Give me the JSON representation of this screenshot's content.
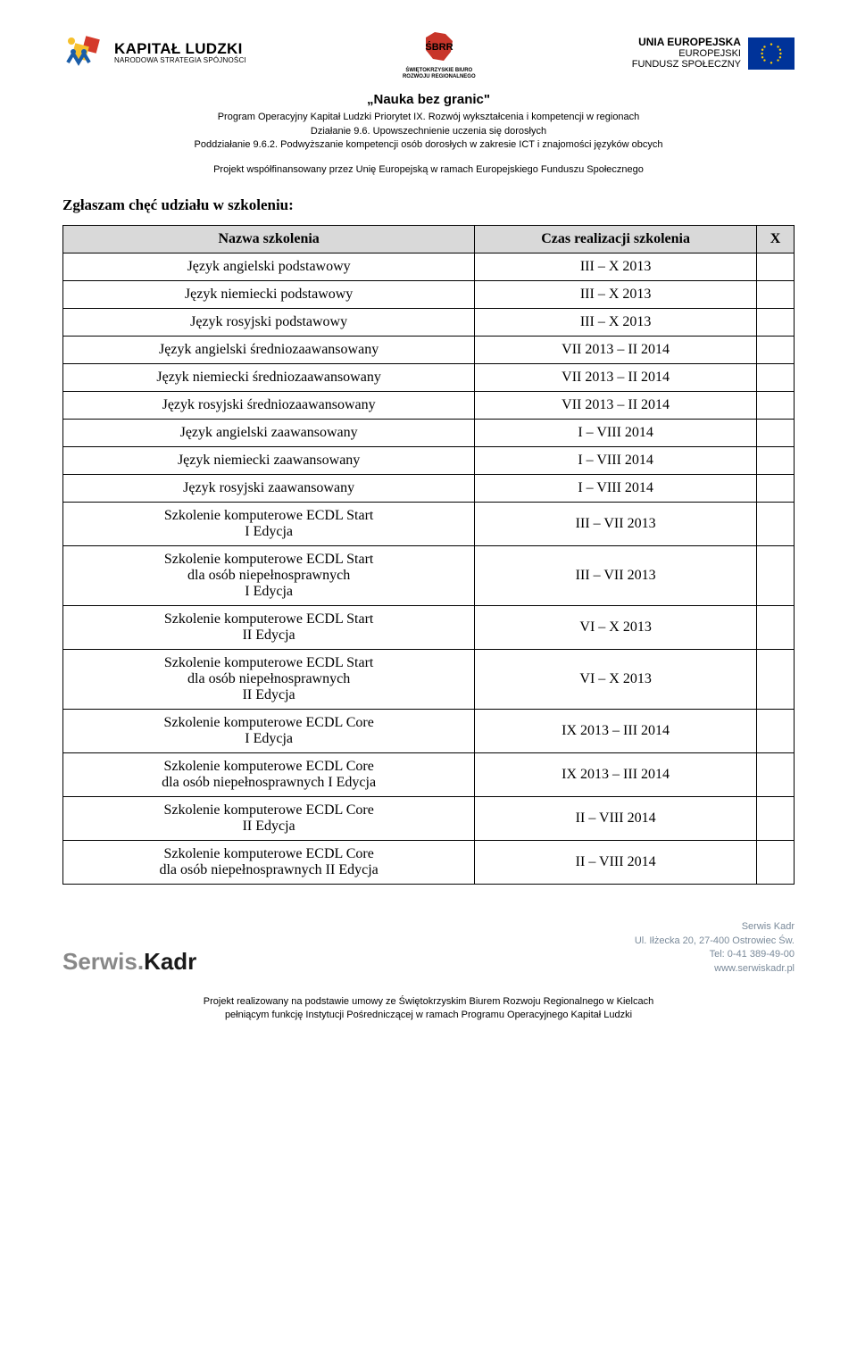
{
  "logos": {
    "left": {
      "big": "KAPITAŁ LUDZKI",
      "small": "NARODOWA STRATEGIA SPÓJNOŚCI"
    },
    "mid": {
      "line1": "ŚWIĘTOKRZYSKIE BIURO",
      "line2": "ROZWOJU REGIONALNEGO"
    },
    "right": {
      "r1": "UNIA EUROPEJSKA",
      "r2": "EUROPEJSKI",
      "r3": "FUNDUSZ SPOŁECZNY"
    }
  },
  "header": {
    "title": "„Nauka bez granic\"",
    "l1": "Program Operacyjny Kapitał Ludzki  Priorytet IX. Rozwój wykształcenia i kompetencji w regionach",
    "l2": "Działanie 9.6. Upowszechnienie uczenia się dorosłych",
    "l3": "Poddziałanie 9.6.2. Podwyższanie kompetencji osób dorosłych w zakresie ICT i znajomości języków obcych"
  },
  "cofinance": "Projekt współfinansowany przez Unię Europejską w ramach Europejskiego Funduszu Społecznego",
  "section_heading": "Zgłaszam chęć udziału w szkoleniu:",
  "table": {
    "headers": {
      "name": "Nazwa szkolenia",
      "time": "Czas realizacji szkolenia",
      "x": "X"
    },
    "rows": [
      {
        "name": "Język angielski podstawowy",
        "time": "III – X 2013"
      },
      {
        "name": "Język niemiecki podstawowy",
        "time": "III – X 2013"
      },
      {
        "name": "Język rosyjski podstawowy",
        "time": "III – X 2013"
      },
      {
        "name": "Język angielski średniozaawansowany",
        "time": "VII 2013 – II 2014"
      },
      {
        "name": "Język niemiecki średniozaawansowany",
        "time": "VII 2013 – II 2014"
      },
      {
        "name": "Język rosyjski średniozaawansowany",
        "time": "VII 2013 – II 2014"
      },
      {
        "name": "Język angielski zaawansowany",
        "time": "I – VIII 2014"
      },
      {
        "name": "Język niemiecki zaawansowany",
        "time": "I – VIII 2014"
      },
      {
        "name": "Język rosyjski zaawansowany",
        "time": "I – VIII 2014"
      },
      {
        "name": "Szkolenie komputerowe ECDL Start\nI Edycja",
        "time": "III – VII 2013"
      },
      {
        "name": "Szkolenie komputerowe ECDL Start\ndla osób niepełnosprawnych\nI Edycja",
        "time": "III – VII 2013"
      },
      {
        "name": "Szkolenie komputerowe ECDL Start\nII Edycja",
        "time": "VI – X 2013"
      },
      {
        "name": "Szkolenie komputerowe ECDL Start\ndla osób niepełnosprawnych\nII Edycja",
        "time": "VI – X 2013"
      },
      {
        "name": "Szkolenie komputerowe ECDL Core\nI Edycja",
        "time": "IX 2013 – III 2014"
      },
      {
        "name": "Szkolenie komputerowe ECDL Core\ndla osób niepełnosprawnych I Edycja",
        "time": "IX 2013 – III 2014"
      },
      {
        "name": "Szkolenie komputerowe ECDL Core\nII Edycja",
        "time": "II – VIII 2014"
      },
      {
        "name": "Szkolenie komputerowe ECDL Core\ndla osób niepełnosprawnych II Edycja",
        "time": "II – VIII 2014"
      }
    ]
  },
  "footer": {
    "logo_light": "Serwis.",
    "logo_dark": "Kadr",
    "info_l1": "Serwis Kadr",
    "info_l2": "Ul. Iłżecka 20, 27-400 Ostrowiec Św.",
    "info_l3": "Tel: 0-41 389-49-00",
    "info_l4": "www.serwiskadr.pl",
    "bottom_l1": "Projekt realizowany na podstawie umowy ze Świętokrzyskim Biurem Rozwoju Regionalnego w Kielcach",
    "bottom_l2": "pełniącym funkcję Instytucji Pośredniczącej w ramach Programu Operacyjnego Kapitał Ludzki"
  },
  "colors": {
    "header_bg": "#d9d9d9",
    "border": "#000000",
    "footer_gray": "#7a8a9a"
  }
}
